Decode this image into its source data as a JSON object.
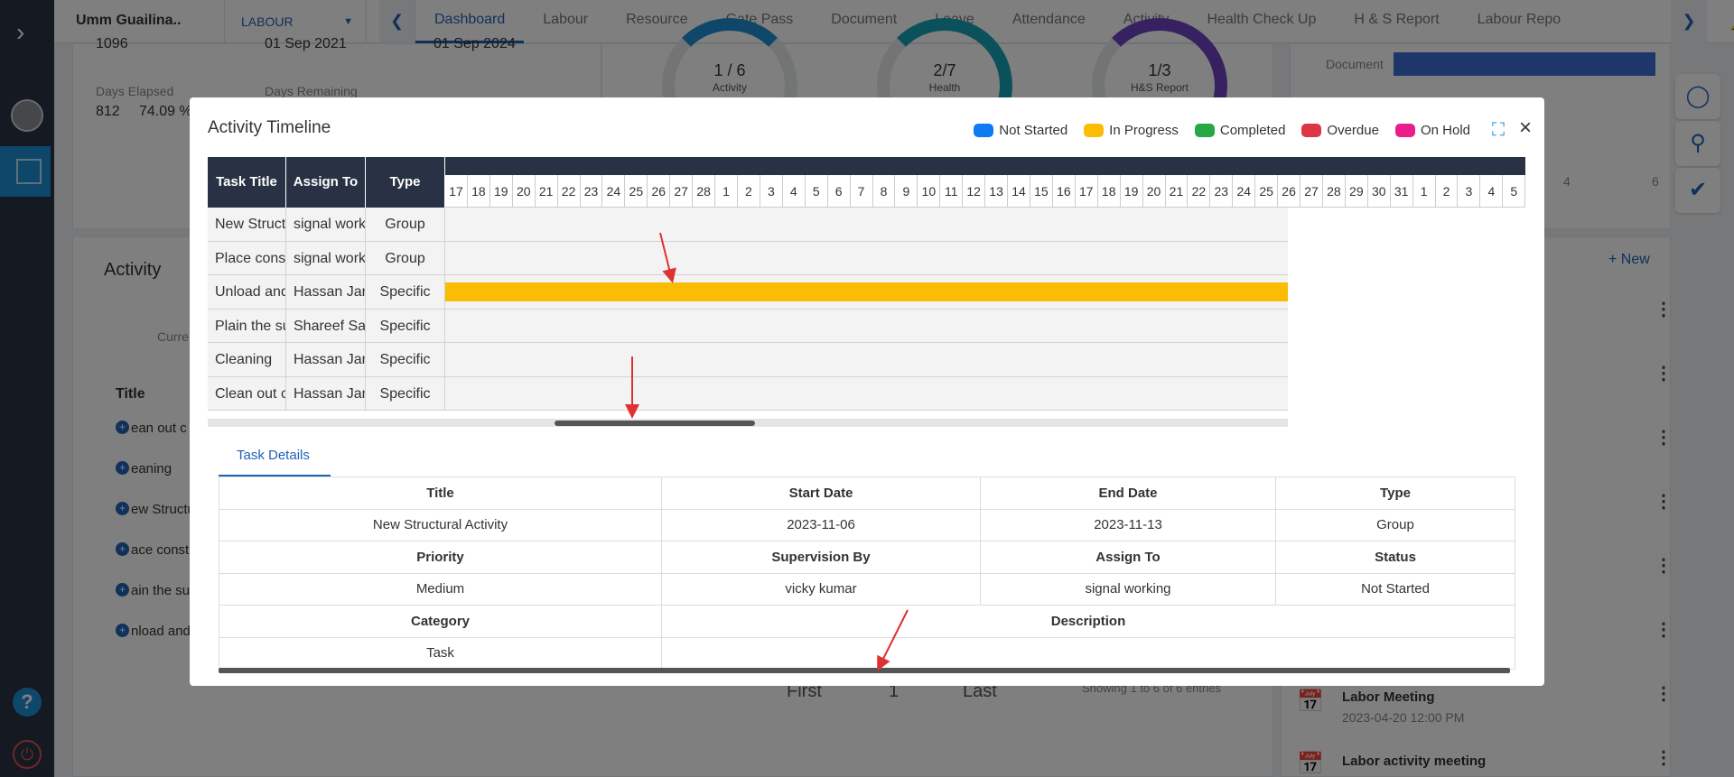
{
  "sidebar": {
    "help": "?",
    "power": "⏻"
  },
  "topbar": {
    "project": "Umm Guailina..",
    "module": "LABOUR",
    "tabs": [
      "Dashboard",
      "Labour",
      "Resource",
      "Gate Pass",
      "Document",
      "Leave",
      "Attendance",
      "Activity",
      "Health Check Up",
      "H & S Report",
      "Labour Repo"
    ],
    "active_tab": "Dashboard",
    "notif_count": "0"
  },
  "background": {
    "stat_top1": "1096",
    "stat_top2": "01 Sep 2021",
    "stat_top3": "01 Sep 2024",
    "days_elapsed_label": "Days Elapsed",
    "days_remaining_label": "Days Remaining",
    "days_elapsed": "812",
    "percent": "74.09 %",
    "donut1": {
      "value": "1 / 6",
      "label": "Activity"
    },
    "donut2": {
      "value": "2/7",
      "label": "Health"
    },
    "donut3": {
      "value": "1/3",
      "label": "H&S Report"
    },
    "doc_label": "Document",
    "axis4": "4",
    "axis6": "6",
    "activity_heading": "Activity",
    "current_label": "Curre",
    "title_col": "Title",
    "list": [
      "ean out c",
      "eaning",
      "ew Structu",
      "ace const",
      "ain the su",
      "nload and"
    ],
    "new_link": "+ New",
    "pager_first": "First",
    "pager_page": "1",
    "pager_last": "Last",
    "showing": "Showing 1 to 6 of 6 entries",
    "meeting1_title": "Labor Meeting",
    "meeting1_time": "2023-04-20 12:00 PM",
    "meeting2_title": "Labor activity meeting"
  },
  "modal": {
    "title": "Activity Timeline",
    "legend": [
      {
        "label": "Not Started",
        "color": "#0d7bf2"
      },
      {
        "label": "In Progress",
        "color": "#fbbc05"
      },
      {
        "label": "Completed",
        "color": "#28a745"
      },
      {
        "label": "Overdue",
        "color": "#dc3545"
      },
      {
        "label": "On Hold",
        "color": "#e91e8c"
      }
    ],
    "grid_headers": {
      "task_title": "Task Title",
      "assign_to": "Assign To",
      "type": "Type"
    },
    "days": [
      "17",
      "18",
      "19",
      "20",
      "21",
      "22",
      "23",
      "24",
      "25",
      "26",
      "27",
      "28",
      "1",
      "2",
      "3",
      "4",
      "5",
      "6",
      "7",
      "8",
      "9",
      "10",
      "11",
      "12",
      "13",
      "14",
      "15",
      "16",
      "17",
      "18",
      "19",
      "20",
      "21",
      "22",
      "23",
      "24",
      "25",
      "26",
      "27",
      "28",
      "29",
      "30",
      "31",
      "1",
      "2",
      "3",
      "4",
      "5"
    ],
    "rows": [
      {
        "task": "New Structural Activity",
        "assign": "signal working",
        "type": "Group",
        "bar": false
      },
      {
        "task": "Place construction",
        "assign": "signal working",
        "type": "Group",
        "bar": false
      },
      {
        "task": "Unload and",
        "assign": "Hassan Jan",
        "type": "Specific",
        "bar": true
      },
      {
        "task": "Plain the surface",
        "assign": "Shareef Sa",
        "type": "Specific",
        "bar": false
      },
      {
        "task": "Cleaning",
        "assign": "Hassan Jan",
        "type": "Specific",
        "bar": false
      },
      {
        "task": "Clean out c",
        "assign": "Hassan Jan",
        "type": "Specific",
        "bar": false
      }
    ],
    "details_tab": "Task Details",
    "details": {
      "title_h": "Title",
      "start_h": "Start Date",
      "end_h": "End Date",
      "type_h": "Type",
      "title": "New Structural Activity",
      "start": "2023-11-06",
      "end": "2023-11-13",
      "type": "Group",
      "priority_h": "Priority",
      "supervision_h": "Supervision By",
      "assign_h": "Assign To",
      "status_h": "Status",
      "priority": "Medium",
      "supervision": "vicky kumar",
      "assign": "signal working",
      "status": "Not Started",
      "category_h": "Category",
      "description_h": "Description",
      "category": "Task",
      "description": ""
    }
  }
}
